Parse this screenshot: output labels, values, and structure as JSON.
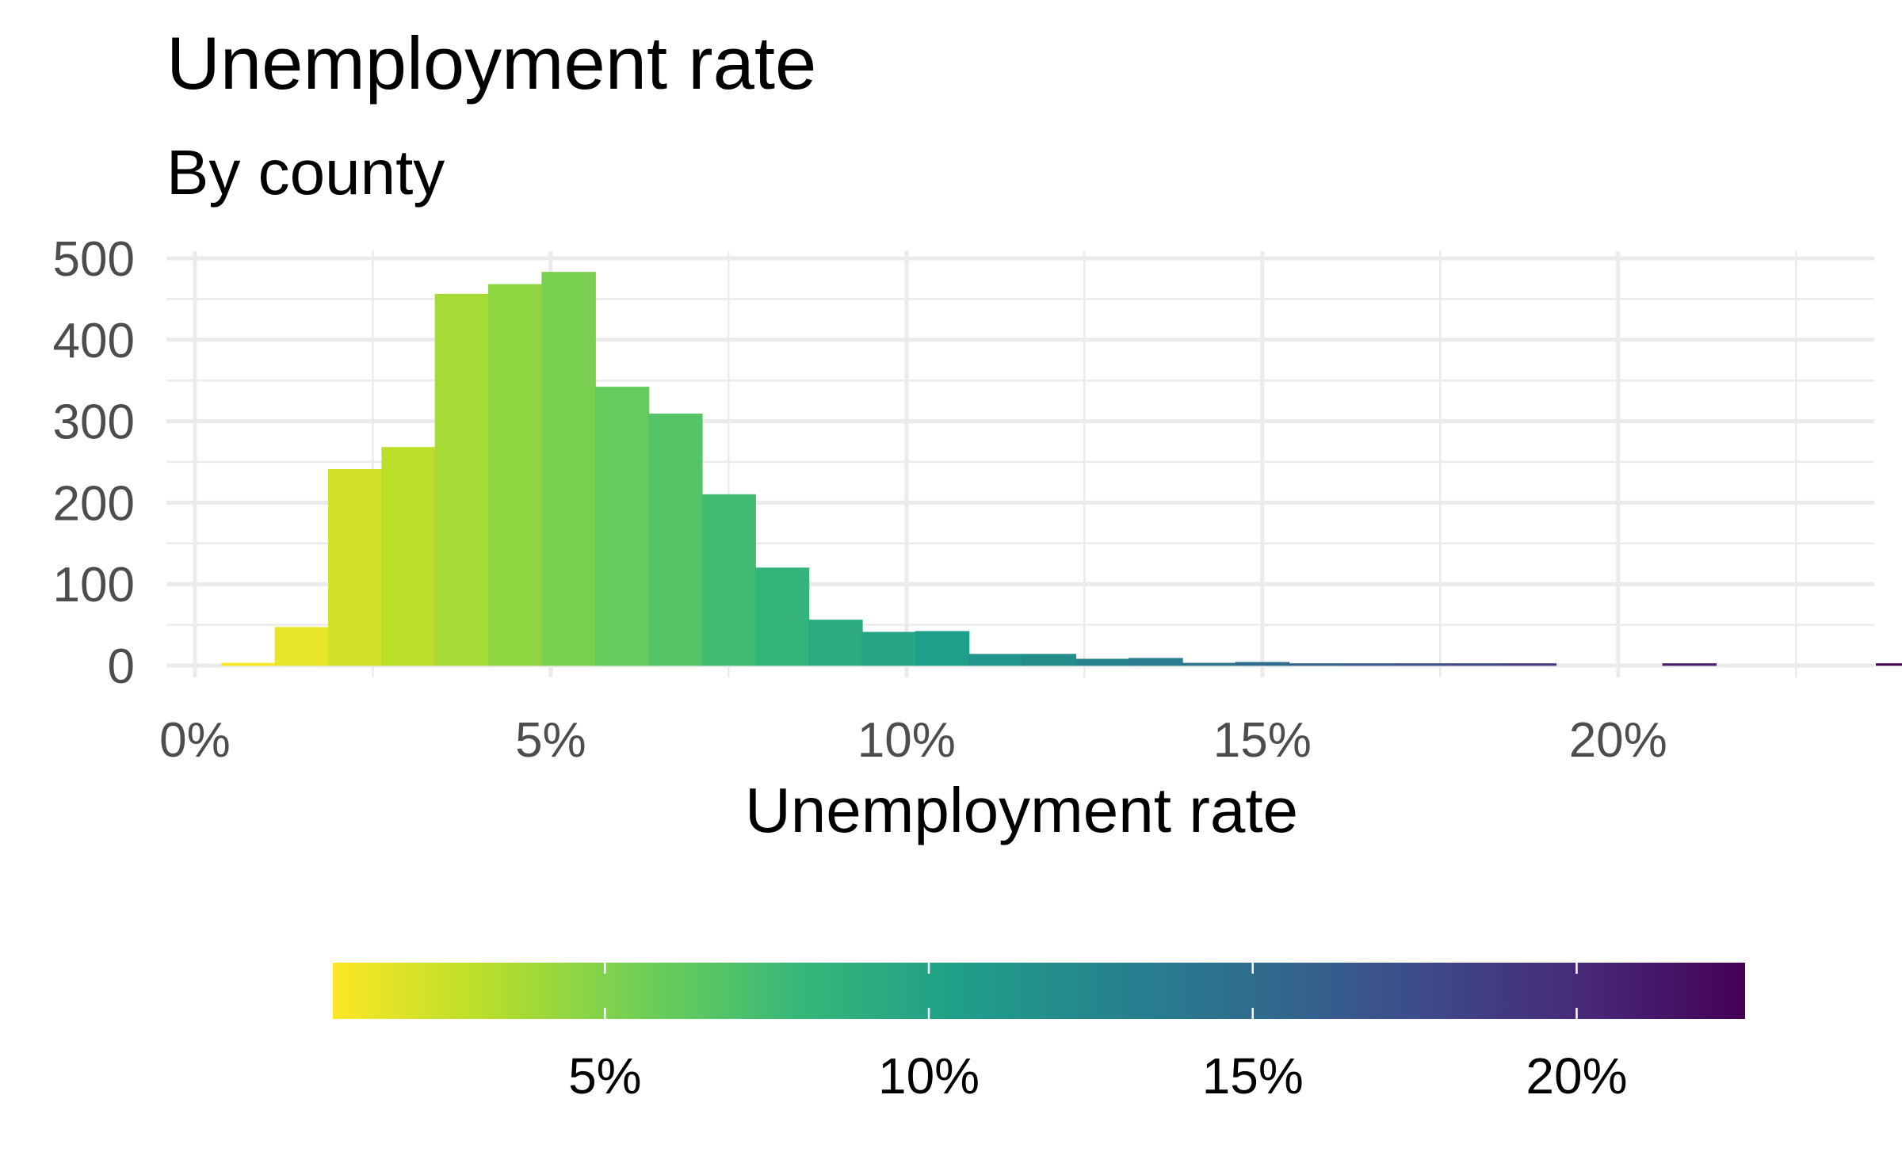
{
  "chart_data": {
    "type": "bar",
    "subtype": "histogram",
    "title": "Unemployment rate",
    "subtitle": "By county",
    "xlabel": "Unemployment rate",
    "ylabel": "",
    "xlim": [
      -0.4,
      23.6
    ],
    "ylim": [
      0,
      500
    ],
    "x_ticks": [
      0,
      5,
      10,
      15,
      20
    ],
    "x_tick_labels": [
      "0%",
      "5%",
      "10%",
      "15%",
      "20%"
    ],
    "y_ticks": [
      0,
      100,
      200,
      300,
      400,
      500
    ],
    "y_tick_labels": [
      "0",
      "100",
      "200",
      "300",
      "400",
      "500"
    ],
    "bin_width": 0.75,
    "bin_start": 0.375,
    "values": [
      3,
      47,
      241,
      268,
      456,
      468,
      483,
      342,
      309,
      210,
      120,
      56,
      41,
      42,
      14,
      14,
      8,
      9,
      3,
      4,
      2,
      2,
      1,
      1,
      1,
      0,
      0,
      1,
      0,
      0,
      0,
      1
    ],
    "grid": true,
    "legend": {
      "position": "bottom",
      "type": "colorbar",
      "palette": "viridis-reversed",
      "range": [
        0.8,
        22.6
      ],
      "breaks": [
        5,
        10,
        15,
        20
      ],
      "labels": [
        "5%",
        "10%",
        "15%",
        "20%"
      ]
    }
  },
  "colors": {
    "viridis": [
      "#440154",
      "#482878",
      "#3e4989",
      "#31688e",
      "#26828e",
      "#1f9e89",
      "#35b779",
      "#6ece58",
      "#b5de2b",
      "#fde725"
    ],
    "grid": "#ebebeb",
    "tick_label": "#4d4d4d",
    "text": "#000000"
  }
}
